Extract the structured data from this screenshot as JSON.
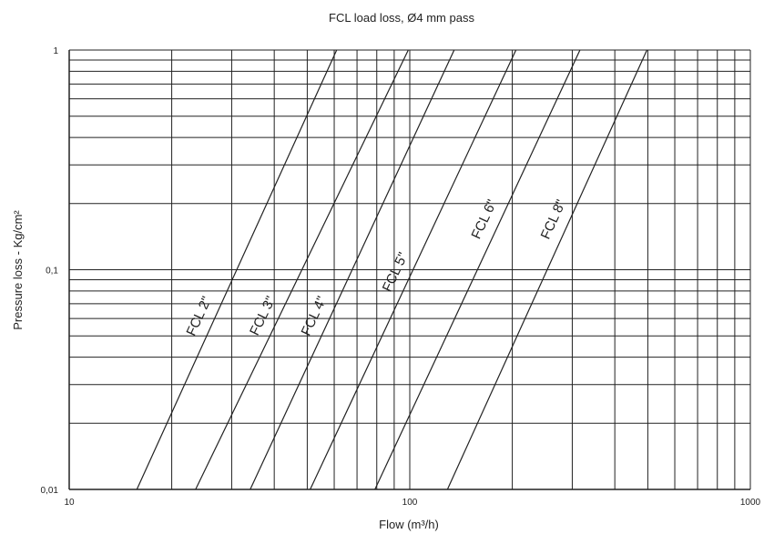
{
  "chart_data": {
    "type": "line",
    "title": "FCL load loss, Ø4 mm pass",
    "xlabel": "Flow (m³/h)",
    "ylabel": "Pressure loss - Kg/cm²",
    "x_scale": "log",
    "y_scale": "log",
    "xlim": [
      10,
      1000
    ],
    "ylim": [
      0.01,
      1
    ],
    "x_ticks": [
      {
        "value": 10,
        "label": "10"
      },
      {
        "value": 100,
        "label": "100"
      },
      {
        "value": 1000,
        "label": "1000"
      }
    ],
    "y_ticks": [
      {
        "value": 0.01,
        "label": "0,01"
      },
      {
        "value": 0.1,
        "label": "0,1"
      },
      {
        "value": 1,
        "label": "1"
      }
    ],
    "grid": true,
    "legend": "none",
    "line_color": "#222222",
    "series": [
      {
        "name": "FCL 2\"",
        "x": [
          15.8,
          61
        ],
        "y": [
          0.01,
          1
        ]
      },
      {
        "name": "FCL 3\"",
        "x": [
          23.5,
          99
        ],
        "y": [
          0.01,
          1
        ]
      },
      {
        "name": "FCL 4\"",
        "x": [
          34,
          135
        ],
        "y": [
          0.01,
          1
        ]
      },
      {
        "name": "FCL 5\"",
        "x": [
          51,
          205
        ],
        "y": [
          0.01,
          1
        ]
      },
      {
        "name": "FCL 6\"",
        "x": [
          79,
          316
        ],
        "y": [
          0.01,
          1
        ]
      },
      {
        "name": "FCL 8\"",
        "x": [
          129,
          497
        ],
        "y": [
          0.01,
          1
        ]
      }
    ]
  }
}
